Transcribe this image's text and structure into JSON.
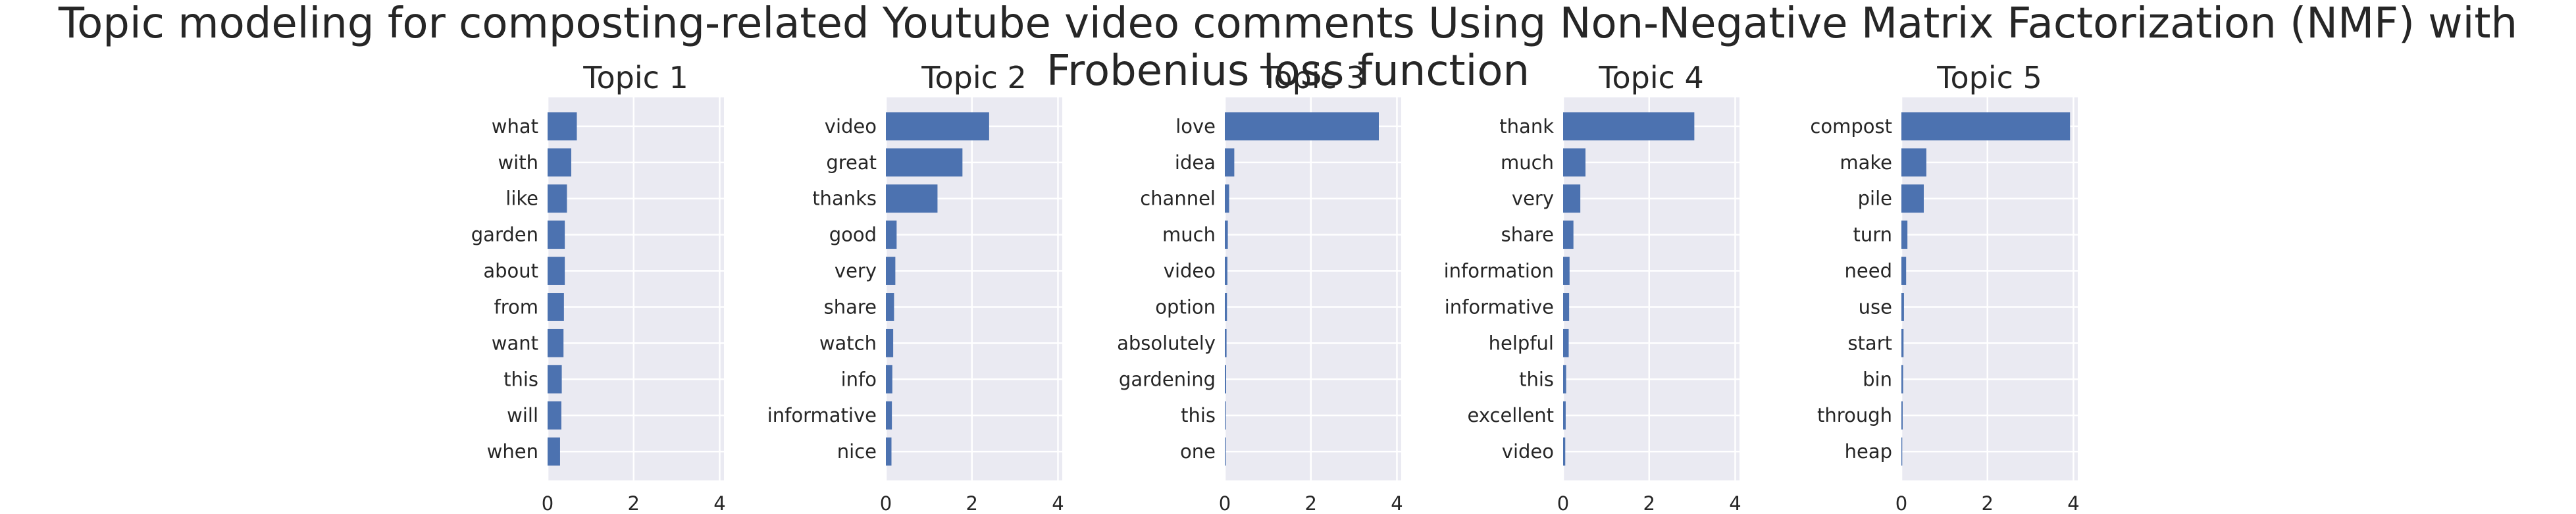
{
  "figure": {
    "title": "Topic modeling for composting-related Youtube video comments Using Non-Negative Matrix Factorization (NMF) with Frobenius loss function"
  },
  "style": {
    "bar_color": "#4c72b0",
    "axes_facecolor": "#eaeaf2",
    "grid_color": "#ffffff",
    "text_color": "#262626"
  },
  "chart_data": [
    {
      "type": "bar",
      "orientation": "horizontal",
      "title": "Topic 1",
      "categories": [
        "what",
        "with",
        "like",
        "garden",
        "about",
        "from",
        "want",
        "this",
        "will",
        "when"
      ],
      "values": [
        0.68,
        0.55,
        0.45,
        0.4,
        0.4,
        0.38,
        0.37,
        0.33,
        0.32,
        0.29
      ],
      "xlim": [
        0,
        4.1
      ],
      "xticks": [
        "0",
        "2",
        "4"
      ],
      "grid": true
    },
    {
      "type": "bar",
      "orientation": "horizontal",
      "title": "Topic 2",
      "categories": [
        "video",
        "great",
        "thanks",
        "good",
        "very",
        "share",
        "watch",
        "info",
        "informative",
        "nice"
      ],
      "values": [
        2.4,
        1.78,
        1.2,
        0.25,
        0.22,
        0.19,
        0.17,
        0.15,
        0.14,
        0.13
      ],
      "xlim": [
        0,
        4.1
      ],
      "xticks": [
        "0",
        "2",
        "4"
      ],
      "grid": true
    },
    {
      "type": "bar",
      "orientation": "horizontal",
      "title": "Topic 3",
      "categories": [
        "love",
        "idea",
        "channel",
        "much",
        "video",
        "option",
        "absolutely",
        "gardening",
        "this",
        "one"
      ],
      "values": [
        3.58,
        0.22,
        0.1,
        0.07,
        0.06,
        0.05,
        0.04,
        0.03,
        0.02,
        0.02
      ],
      "xlim": [
        0,
        4.1
      ],
      "xticks": [
        "0",
        "2",
        "4"
      ],
      "grid": true
    },
    {
      "type": "bar",
      "orientation": "horizontal",
      "title": "Topic 4",
      "categories": [
        "thank",
        "much",
        "very",
        "share",
        "information",
        "informative",
        "helpful",
        "this",
        "excellent",
        "video"
      ],
      "values": [
        3.05,
        0.52,
        0.4,
        0.24,
        0.15,
        0.14,
        0.13,
        0.07,
        0.06,
        0.05
      ],
      "xlim": [
        0,
        4.1
      ],
      "xticks": [
        "0",
        "2",
        "4"
      ],
      "grid": true
    },
    {
      "type": "bar",
      "orientation": "horizontal",
      "title": "Topic 5",
      "categories": [
        "compost",
        "make",
        "pile",
        "turn",
        "need",
        "use",
        "start",
        "bin",
        "through",
        "heap"
      ],
      "values": [
        3.92,
        0.58,
        0.52,
        0.14,
        0.11,
        0.06,
        0.05,
        0.04,
        0.03,
        0.02
      ],
      "xlim": [
        0,
        4.1
      ],
      "xticks": [
        "0",
        "2",
        "4"
      ],
      "grid": true
    }
  ]
}
